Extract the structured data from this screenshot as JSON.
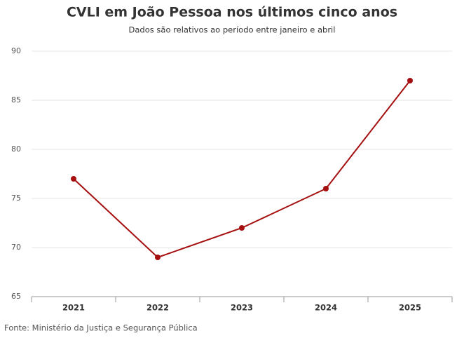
{
  "chart_data": {
    "type": "line",
    "title": "CVLI em João Pessoa nos últimos cinco anos",
    "subtitle": "Dados são relativos ao período entre janeiro e abril",
    "source": "Fonte: Ministério da Justiça e Segurança Pública",
    "categories": [
      "2021",
      "2022",
      "2023",
      "2024",
      "2025"
    ],
    "values": [
      77,
      69,
      72,
      76,
      87
    ],
    "color": "#a50f0f",
    "ylim": [
      65,
      90
    ],
    "yticks": [
      65,
      70,
      75,
      80,
      85,
      90
    ],
    "grid": true
  }
}
